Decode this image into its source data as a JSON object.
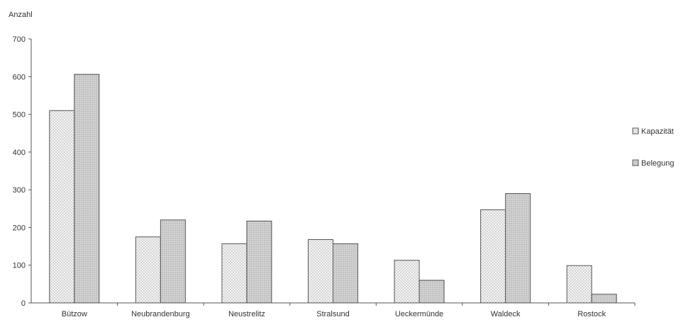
{
  "chart_data": {
    "type": "bar",
    "ylabel": "Anzahl",
    "xlabel": "",
    "ylim": [
      0,
      700
    ],
    "yticks": [
      0,
      100,
      200,
      300,
      400,
      500,
      600,
      700
    ],
    "grid": false,
    "legend_position": "right",
    "categories": [
      "Bützow",
      "Neubrandenburg",
      "Neustrelitz",
      "Stralsund",
      "Ueckermünde",
      "Waldeck",
      "Rostock"
    ],
    "series": [
      {
        "name": "Kapazität",
        "values": [
          510,
          175,
          157,
          168,
          113,
          247,
          99
        ]
      },
      {
        "name": "Belegung",
        "values": [
          606,
          220,
          217,
          157,
          60,
          290,
          23
        ]
      }
    ],
    "colors": {
      "kapazitaet_fill": "#f4f4f4",
      "belegung_fill": "#d6d6d6",
      "stroke": "#555555"
    }
  }
}
